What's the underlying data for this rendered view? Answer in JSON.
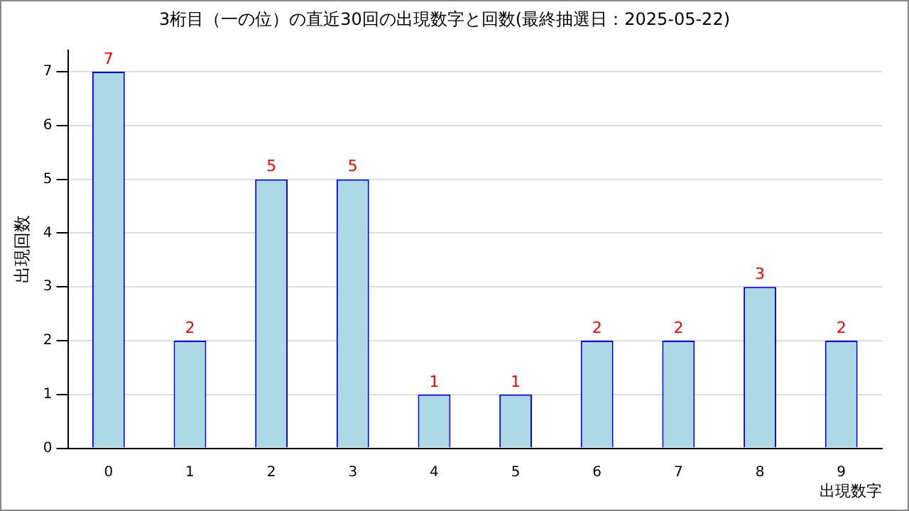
{
  "chart_data": {
    "type": "bar",
    "title": "3桁目（一の位）の直近30回の出現数字と回数(最終抽選日：2025-05-22)",
    "xlabel": "出現数字",
    "ylabel": "出現回数",
    "categories": [
      "0",
      "1",
      "2",
      "3",
      "4",
      "5",
      "6",
      "7",
      "8",
      "9"
    ],
    "values": [
      7,
      2,
      5,
      5,
      1,
      1,
      2,
      2,
      3,
      2
    ],
    "color": "#add8e6",
    "ylim": [
      0,
      7.4
    ],
    "yticks": [
      0,
      1,
      2,
      3,
      4,
      5,
      6,
      7
    ],
    "grid": "y",
    "data_labels": true,
    "legend": false
  }
}
